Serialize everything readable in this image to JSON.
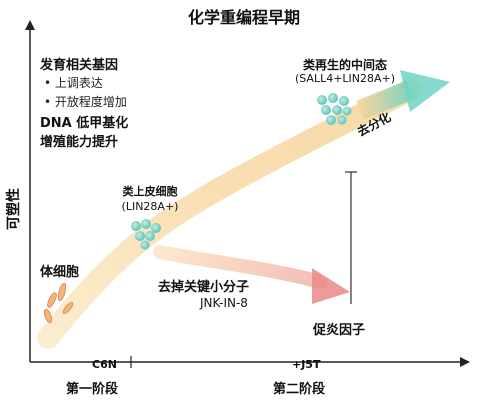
{
  "title": "化学重编程早期",
  "y_axis_label": "可塑性",
  "development": {
    "heading": "发育相关基因",
    "bullets": [
      "上调表达",
      "开放程度增加"
    ],
    "dna": "DNA 低甲基化",
    "proliferation": "增殖能力提升"
  },
  "somatic_cell": "体细胞",
  "epithelial_like": {
    "label": "类上皮细胞",
    "marker": "(LIN28A+)"
  },
  "regenerative_like": {
    "label": "类再生的中间态",
    "marker": "(SALL4+LIN28A+)"
  },
  "dedifferentiation": "去分化",
  "inhibitor": {
    "label": "去掉关键小分子",
    "compound": "JNK-IN-8"
  },
  "proinflammatory": "促炎因子",
  "conditions": {
    "first": "C6N",
    "second": "+J5T"
  },
  "stages": {
    "first": "第一阶段",
    "second": "第二阶段"
  },
  "colors": {
    "main_arrow": "#f7d9a4",
    "teal": "#6fd3c4",
    "pink": "#e98a8a",
    "axis": "#222222"
  }
}
